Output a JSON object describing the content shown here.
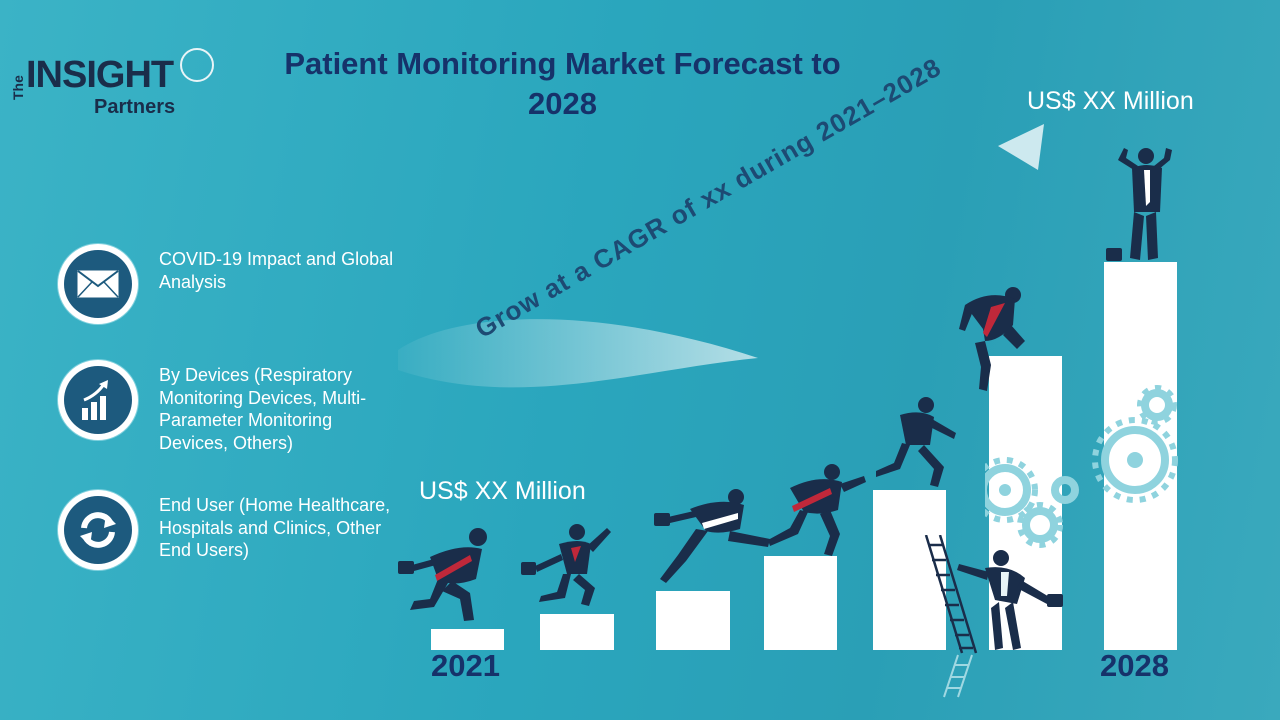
{
  "logo": {
    "the": "The",
    "insight": "INSIGHT",
    "partners": "Partners"
  },
  "title": "Patient Monitoring Market Forecast to 2028",
  "features": [
    {
      "label": "COVID-19 Impact and Global Analysis",
      "icon": "envelope-icon"
    },
    {
      "label": "By Devices (Respiratory Monitoring Devices, Multi-Parameter Monitoring Devices, Others)",
      "icon": "growth-chart-icon"
    },
    {
      "label": "End User (Home Healthcare, Hospitals and Clinics, Other End Users)",
      "icon": "refresh-cycle-icon"
    }
  ],
  "value_start": "US$ XX Million",
  "value_end": "US$ XX Million",
  "cagr_text": "Grow at a CAGR of xx during 2021–2028",
  "year_start": "2021",
  "year_end": "2028",
  "colors": {
    "background": "#2aa6bd",
    "title": "#16326a",
    "icon_fill": "#1d5a7e",
    "figure": "#1a2d4a",
    "tie": "#c0283a"
  }
}
